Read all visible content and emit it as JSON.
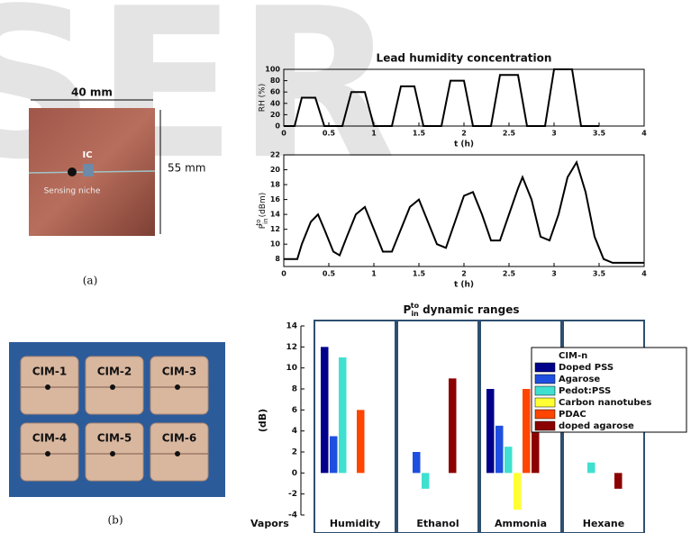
{
  "watermark": "SER",
  "panel_a": {
    "width_label": "40 mm",
    "height_label": "55 mm",
    "ic_label": "IC",
    "niche_label": "Sensing niche",
    "caption": "(a)"
  },
  "panel_b": {
    "modules": [
      "CIM-1",
      "CIM-2",
      "CIM-3",
      "CIM-4",
      "CIM-5",
      "CIM-6"
    ],
    "caption": "(b)"
  },
  "chart_data": [
    {
      "type": "line",
      "title": "Lead humidity concentration",
      "xlabel": "t (h)",
      "ylabel": "RH (%)",
      "color": "#000000",
      "x": [
        0,
        0.12,
        0.2,
        0.35,
        0.45,
        0.65,
        0.75,
        0.9,
        1.0,
        1.2,
        1.3,
        1.45,
        1.55,
        1.75,
        1.85,
        2.0,
        2.1,
        2.3,
        2.4,
        2.6,
        2.7,
        2.9,
        3.0,
        3.2,
        3.3,
        3.5
      ],
      "values": [
        0,
        0,
        50,
        50,
        0,
        0,
        60,
        60,
        0,
        0,
        70,
        70,
        0,
        0,
        80,
        80,
        0,
        0,
        90,
        90,
        0,
        0,
        100,
        100,
        0,
        0
      ],
      "xlim": [
        0,
        4
      ],
      "xticks": [
        0,
        0.5,
        1,
        1.5,
        2,
        2.5,
        3,
        3.5,
        4
      ],
      "ylim": [
        0,
        100
      ],
      "yticks": [
        0,
        20,
        40,
        60,
        80,
        100
      ]
    },
    {
      "type": "line",
      "xlabel": "t (h)",
      "ylabel": {
        "base": "P",
        "sub": "in",
        "sup": "to",
        "unit": "(dBm)"
      },
      "color": "#000000",
      "x": [
        0,
        0.15,
        0.2,
        0.3,
        0.38,
        0.45,
        0.55,
        0.62,
        0.7,
        0.8,
        0.9,
        1.0,
        1.1,
        1.2,
        1.3,
        1.4,
        1.5,
        1.6,
        1.7,
        1.8,
        1.9,
        2.0,
        2.1,
        2.2,
        2.3,
        2.4,
        2.5,
        2.6,
        2.65,
        2.75,
        2.85,
        2.95,
        3.05,
        3.15,
        3.25,
        3.35,
        3.45,
        3.55,
        3.65,
        4.0
      ],
      "values": [
        8,
        8,
        10,
        13,
        14,
        12,
        9,
        8.5,
        11,
        14,
        15,
        12,
        9,
        9,
        12,
        15,
        16,
        13,
        10,
        9.5,
        13,
        16.5,
        17,
        14,
        10.5,
        10.5,
        14,
        17.5,
        19,
        16,
        11,
        10.5,
        14,
        19,
        21,
        17,
        11,
        8,
        7.5,
        7.5
      ],
      "xlim": [
        0,
        4
      ],
      "xticks": [
        0,
        0.5,
        1,
        1.5,
        2,
        2.5,
        3,
        3.5,
        4
      ],
      "ylim": [
        7,
        22
      ],
      "yticks": [
        8,
        10,
        12,
        14,
        16,
        18,
        20,
        22
      ]
    },
    {
      "type": "bar",
      "title": {
        "base": "P",
        "sub": "in",
        "sup": "to",
        "rest": "dynamic ranges"
      },
      "xlabel": "Vapors",
      "ylabel": "(dB)",
      "categories": [
        "Humidity",
        "Ethanol",
        "Ammonia",
        "Hexane"
      ],
      "series": [
        {
          "name": "Doped PSS",
          "color": "#00008b",
          "values": [
            12,
            0,
            8,
            0
          ]
        },
        {
          "name": "Agarose",
          "color": "#1f4fe0",
          "values": [
            3.5,
            2,
            4.5,
            0
          ]
        },
        {
          "name": "Pedot:PSS",
          "color": "#40e0d0",
          "values": [
            11,
            -1.5,
            2.5,
            1
          ]
        },
        {
          "name": "Carbon nanotubes",
          "color": "#ffff33",
          "values": [
            0,
            0,
            -3.5,
            0
          ]
        },
        {
          "name": "PDAC",
          "color": "#ff4500",
          "values": [
            6,
            0,
            8,
            0
          ]
        },
        {
          "name": "doped agarose",
          "color": "#8b0000",
          "values": [
            0,
            9,
            7,
            -1.5
          ]
        }
      ],
      "legend_title": "CIM-n",
      "legend": "upper right",
      "ylim": [
        -4,
        14
      ],
      "yticks": [
        -4,
        -2,
        0,
        2,
        4,
        6,
        8,
        10,
        12,
        14
      ]
    }
  ]
}
